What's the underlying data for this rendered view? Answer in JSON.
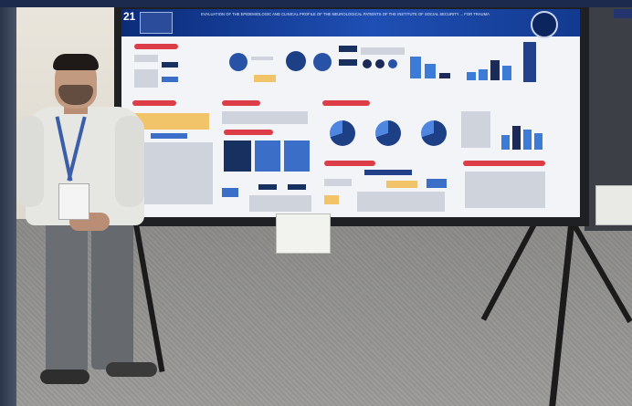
{
  "scene": {
    "description_tag": "photo",
    "colors": {
      "poster_header": "#1f4fb4",
      "accent_red": "#dd3d46",
      "chart_blue": "#3c7bd6",
      "floor": "#a3a29f",
      "shirt": "#e6e6e2",
      "trousers": "#6a6e72"
    }
  },
  "poster": {
    "number": "21",
    "title": "EVALUATION OF THE EPIDEMIOLOGIC AND CLINICAL PROFILE OF THE NEUROLOGICAL PATIENTS OF THE INSTITUTE OF SOCIAL SECURITY ... FOR TRAUMA"
  },
  "icons": {
    "seal": "university-seal-icon",
    "logo": "conference-logo-icon"
  }
}
